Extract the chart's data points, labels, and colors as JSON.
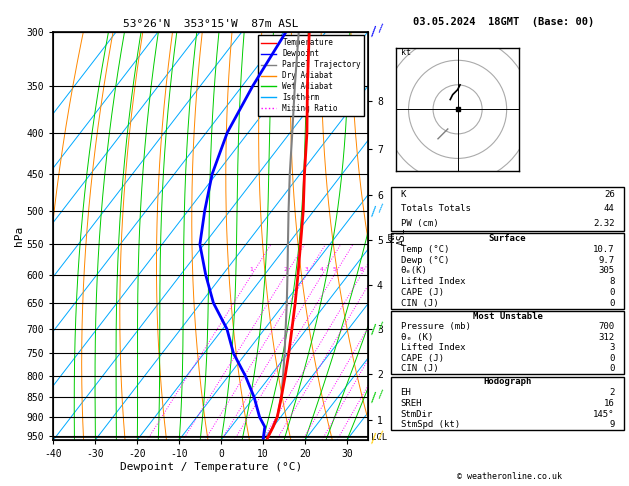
{
  "title_left": "53°26'N  353°15'W  87m ASL",
  "title_right": "03.05.2024  18GMT  (Base: 00)",
  "xlabel": "Dewpoint / Temperature (°C)",
  "ylabel_left": "hPa",
  "pressure_ticks": [
    300,
    350,
    400,
    450,
    500,
    550,
    600,
    650,
    700,
    750,
    800,
    850,
    900,
    950
  ],
  "temp_min": -40,
  "temp_max": 35,
  "pres_min": 300,
  "pres_max": 960,
  "temperature_profile": {
    "pressure": [
      955,
      925,
      900,
      850,
      800,
      750,
      700,
      650,
      600,
      550,
      500,
      450,
      400,
      350,
      300
    ],
    "temperature": [
      10.7,
      10.0,
      9.2,
      6.5,
      3.5,
      0.2,
      -3.5,
      -7.5,
      -12.0,
      -17.0,
      -22.5,
      -29.0,
      -36.0,
      -44.5,
      -54.0
    ],
    "color": "#ff0000",
    "linewidth": 2.0
  },
  "dewpoint_profile": {
    "pressure": [
      955,
      925,
      900,
      850,
      800,
      750,
      700,
      650,
      600,
      550,
      500,
      450,
      400,
      350,
      300
    ],
    "temperature": [
      9.7,
      8.0,
      5.0,
      0.0,
      -6.0,
      -13.0,
      -19.0,
      -27.0,
      -34.0,
      -41.0,
      -46.0,
      -51.0,
      -55.0,
      -57.5,
      -59.5
    ],
    "color": "#0000ff",
    "linewidth": 2.0
  },
  "parcel_profile": {
    "pressure": [
      955,
      900,
      850,
      800,
      750,
      700,
      650,
      600,
      550,
      500,
      450,
      400,
      350,
      300
    ],
    "temperature": [
      10.7,
      9.2,
      6.5,
      3.0,
      -0.8,
      -5.0,
      -9.5,
      -14.5,
      -20.0,
      -26.0,
      -32.5,
      -39.5,
      -47.5,
      -56.5
    ],
    "color": "#808080",
    "linewidth": 1.5
  },
  "surface_data": {
    "temp": "10.7",
    "dewp": "9.7",
    "theta_e": "305",
    "lifted_index": "8",
    "cape": "0",
    "cin": "0"
  },
  "most_unstable": {
    "pressure": "700",
    "theta_e": "312",
    "lifted_index": "3",
    "cape": "0",
    "cin": "0"
  },
  "hodograph_data": {
    "EH": "2",
    "SREH": "16",
    "StmDir": "145°",
    "StmSpd": "9"
  },
  "indices": {
    "K": "26",
    "Totals_Totals": "44",
    "PW_cm": "2.32"
  },
  "km_ticks": [
    1,
    2,
    3,
    4,
    5,
    6,
    7,
    8
  ],
  "km_pressures": [
    908,
    795,
    700,
    618,
    544,
    478,
    419,
    366
  ],
  "mixing_ratio_values": [
    1,
    2,
    3,
    4,
    5,
    8,
    10,
    15,
    20,
    25
  ],
  "lcl_pressure": 953,
  "bg_color": "#ffffff",
  "isotherm_color": "#00aaff",
  "dry_adiabat_color": "#ff8800",
  "wet_adiabat_color": "#00cc00",
  "mixing_ratio_color": "#ff00ff",
  "legend_items": [
    [
      "Temperature",
      "#ff0000",
      "solid"
    ],
    [
      "Dewpoint",
      "#0000ff",
      "solid"
    ],
    [
      "Parcel Trajectory",
      "#808080",
      "solid"
    ],
    [
      "Dry Adiabat",
      "#ff8800",
      "solid"
    ],
    [
      "Wet Adiabat",
      "#00cc00",
      "solid"
    ],
    [
      "Isotherm",
      "#00aaff",
      "solid"
    ],
    [
      "Mixing Ratio",
      "#ff00ff",
      "dotted"
    ]
  ],
  "wind_barb_pressures": [
    300,
    500,
    700,
    850,
    955
  ],
  "wind_barb_colors": [
    "#0000ff",
    "#00aaff",
    "#00cc00",
    "#00cc00",
    "#ffcc00"
  ],
  "copyright": "© weatheronline.co.uk"
}
